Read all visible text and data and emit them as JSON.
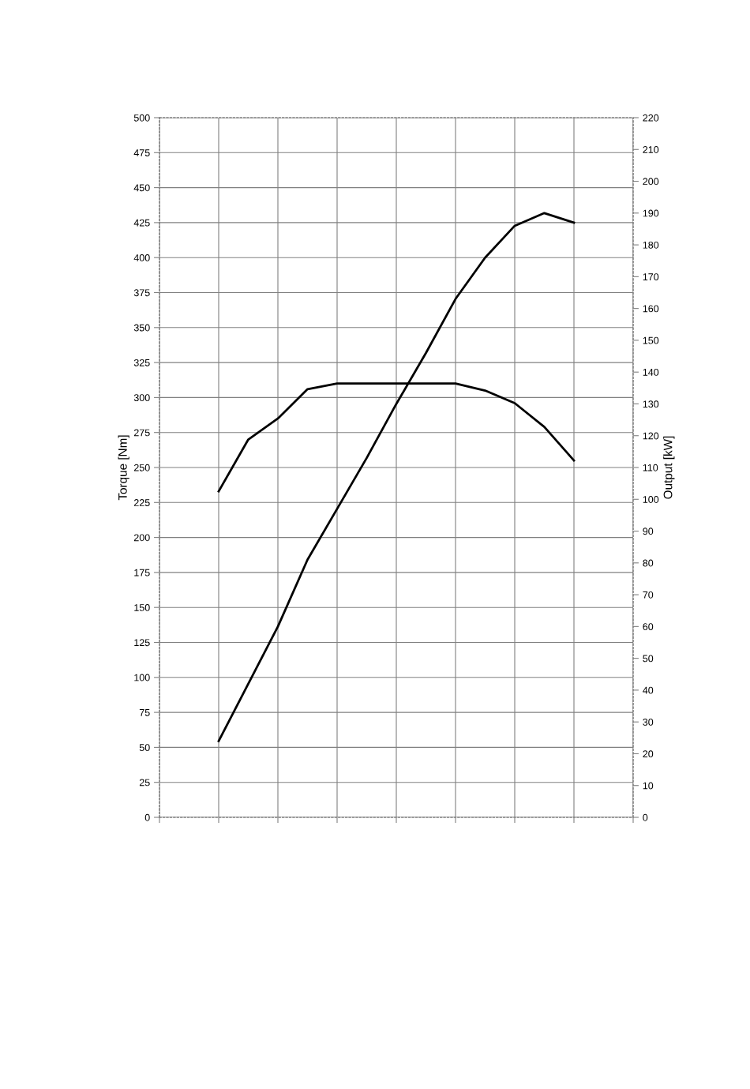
{
  "chart_data": {
    "type": "line",
    "ylabel": "Torque [Nm]",
    "y2label": "Output [kW]",
    "categories": [
      null,
      null,
      null,
      null,
      null,
      null,
      null,
      null,
      null,
      null,
      null,
      null,
      null,
      null,
      null,
      null,
      null
    ],
    "ylim": [
      0,
      500
    ],
    "yticks": [
      0,
      25,
      50,
      75,
      100,
      125,
      150,
      175,
      200,
      225,
      250,
      275,
      300,
      325,
      350,
      375,
      400,
      425,
      450,
      475,
      500
    ],
    "y2lim": [
      0,
      220
    ],
    "y2ticks": [
      0,
      10,
      20,
      30,
      40,
      50,
      60,
      70,
      80,
      90,
      100,
      110,
      120,
      130,
      140,
      150,
      160,
      170,
      180,
      190,
      200,
      210,
      220
    ],
    "grid": true,
    "marker": "none",
    "line_style": "solid",
    "series": [
      {
        "color": "#000000",
        "values": [
          null,
          null,
          233,
          270,
          285,
          306,
          310,
          310,
          310,
          310,
          310,
          305,
          296,
          279,
          255,
          null,
          null
        ]
      },
      {
        "color": "#000000",
        "axis": "y2",
        "values": [
          null,
          null,
          24,
          42,
          60,
          81,
          97,
          113,
          130,
          146,
          163,
          176,
          186,
          190,
          187,
          null,
          null
        ]
      }
    ]
  }
}
